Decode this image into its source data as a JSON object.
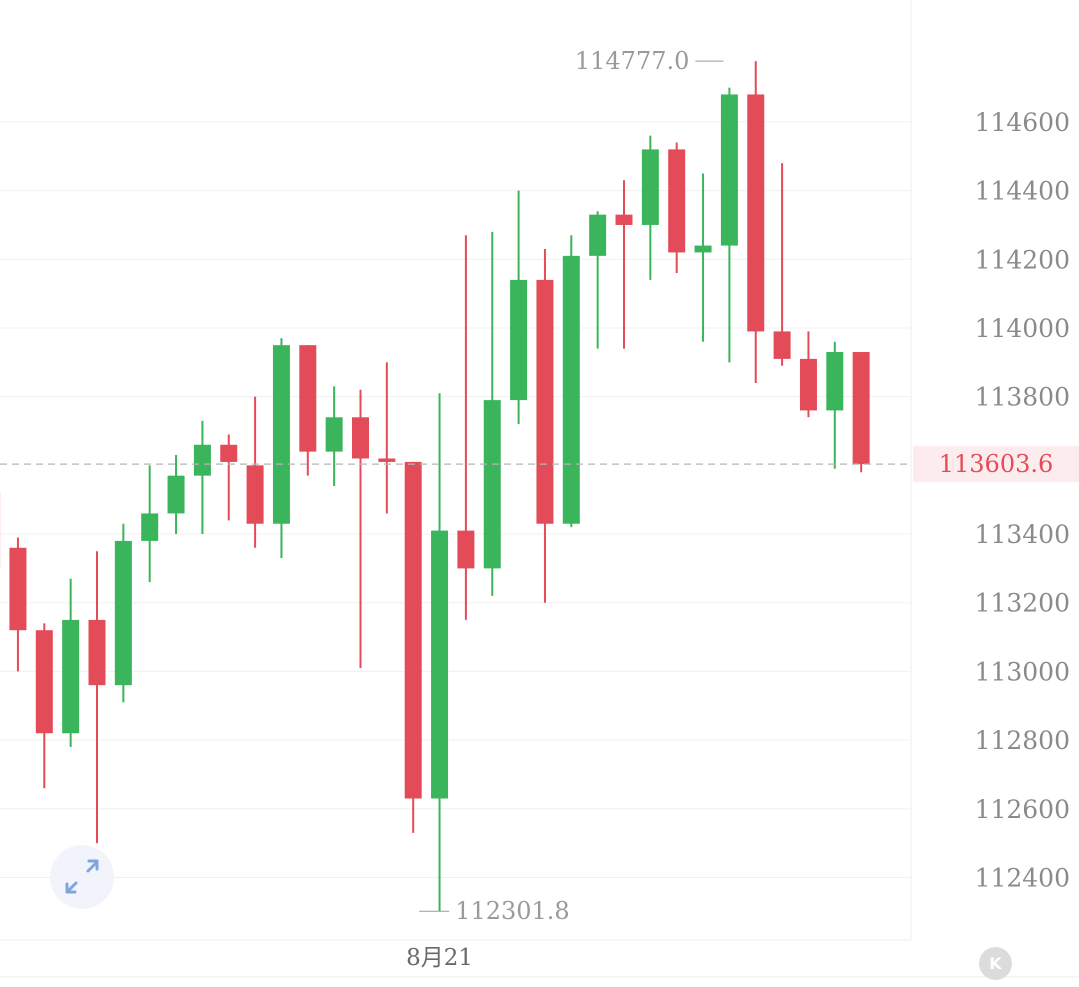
{
  "colors": {
    "up": "#3bb55c",
    "down": "#e44b58",
    "grid": "#f0f0f0",
    "axis_text": "#8a8a8a",
    "current_price_text": "#e44b58",
    "current_price_bg": "#fdecee",
    "dashed_line": "#b5b5b5",
    "annotation_text": "#9a9a9a"
  },
  "chart_data": {
    "type": "candlestick",
    "y_ticks": [
      112400,
      112600,
      112800,
      113000,
      113200,
      113400,
      113800,
      114000,
      114200,
      114400,
      114600
    ],
    "ylim": [
      112218,
      114955
    ],
    "x_labels": [
      {
        "label": "8月21",
        "index": 17
      }
    ],
    "current_price": 113603.6,
    "current_price_label": "113603.6",
    "high_annotation": {
      "label": "114777.0",
      "value": 114777.0,
      "index": 28
    },
    "low_annotation": {
      "label": "112301.8",
      "value": 112301.8,
      "index": 16
    },
    "candles": [
      {
        "open": 113520,
        "close": 113300,
        "high": 113530,
        "low": 113200
      },
      {
        "open": 113360,
        "close": 113120,
        "high": 113390,
        "low": 113000
      },
      {
        "open": 113120,
        "close": 112820,
        "high": 113140,
        "low": 112660
      },
      {
        "open": 112820,
        "close": 113150,
        "high": 113270,
        "low": 112780
      },
      {
        "open": 113150,
        "close": 112960,
        "high": 113350,
        "low": 112500
      },
      {
        "open": 112960,
        "close": 113380,
        "high": 113430,
        "low": 112910
      },
      {
        "open": 113380,
        "close": 113460,
        "high": 113600,
        "low": 113260
      },
      {
        "open": 113460,
        "close": 113570,
        "high": 113630,
        "low": 113400
      },
      {
        "open": 113570,
        "close": 113660,
        "high": 113730,
        "low": 113400
      },
      {
        "open": 113660,
        "close": 113610,
        "high": 113690,
        "low": 113440
      },
      {
        "open": 113600,
        "close": 113430,
        "high": 113800,
        "low": 113360
      },
      {
        "open": 113430,
        "close": 113950,
        "high": 113970,
        "low": 113330
      },
      {
        "open": 113950,
        "close": 113640,
        "high": 113950,
        "low": 113570
      },
      {
        "open": 113640,
        "close": 113740,
        "high": 113830,
        "low": 113540
      },
      {
        "open": 113740,
        "close": 113620,
        "high": 113820,
        "low": 113010
      },
      {
        "open": 113620,
        "close": 113610,
        "high": 113900,
        "low": 113460
      },
      {
        "open": 113610,
        "close": 112630,
        "high": 113610,
        "low": 112530
      },
      {
        "open": 112630,
        "close": 113410,
        "high": 113810,
        "low": 112301.8
      },
      {
        "open": 113410,
        "close": 113300,
        "high": 114270,
        "low": 113150
      },
      {
        "open": 113300,
        "close": 113790,
        "high": 114280,
        "low": 113220
      },
      {
        "open": 113790,
        "close": 114140,
        "high": 114400,
        "low": 113720
      },
      {
        "open": 114140,
        "close": 113430,
        "high": 114230,
        "low": 113200
      },
      {
        "open": 113430,
        "close": 114210,
        "high": 114270,
        "low": 113420
      },
      {
        "open": 114210,
        "close": 114330,
        "high": 114340,
        "low": 113940
      },
      {
        "open": 114330,
        "close": 114300,
        "high": 114430,
        "low": 113940
      },
      {
        "open": 114300,
        "close": 114520,
        "high": 114560,
        "low": 114140
      },
      {
        "open": 114520,
        "close": 114220,
        "high": 114540,
        "low": 114160
      },
      {
        "open": 114220,
        "close": 114240,
        "high": 114450,
        "low": 113960
      },
      {
        "open": 114240,
        "close": 114680,
        "high": 114700,
        "low": 113900
      },
      {
        "open": 114680,
        "close": 113990,
        "high": 114777.0,
        "low": 113840
      },
      {
        "open": 113990,
        "close": 113910,
        "high": 114480,
        "low": 113890
      },
      {
        "open": 113910,
        "close": 113760,
        "high": 113990,
        "low": 113740
      },
      {
        "open": 113760,
        "close": 113930,
        "high": 113960,
        "low": 113590
      },
      {
        "open": 113930,
        "close": 113603.6,
        "high": 113930,
        "low": 113580
      }
    ]
  }
}
